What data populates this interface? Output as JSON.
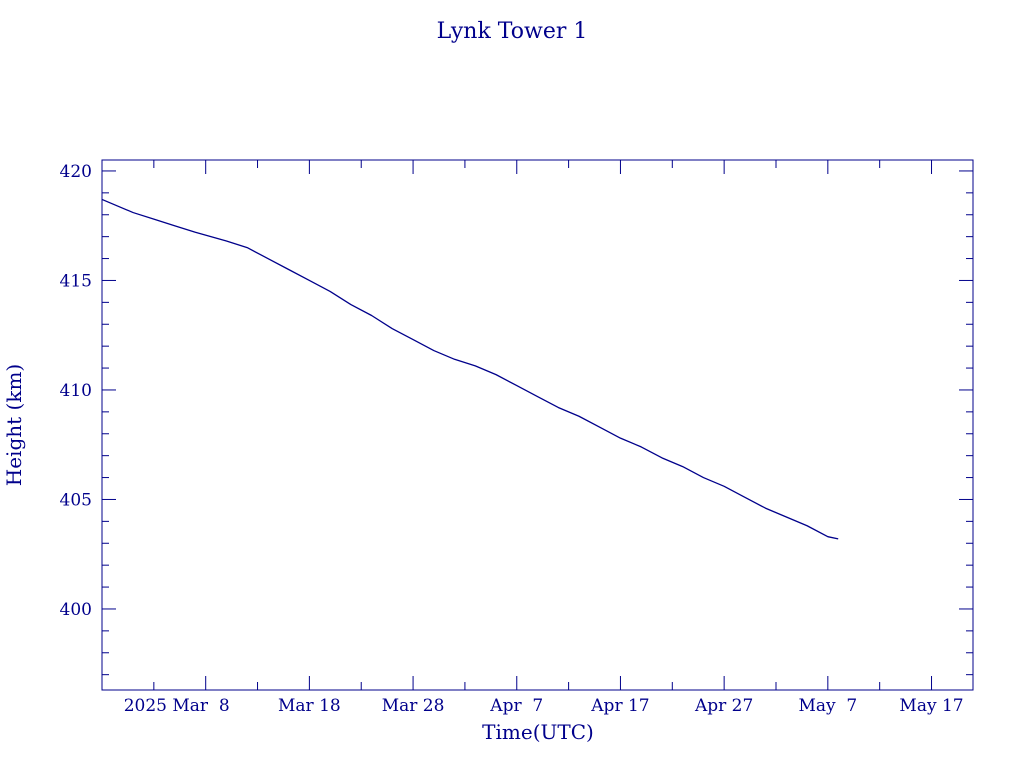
{
  "colors": {
    "ink": "#00008B",
    "background": "#ffffff"
  },
  "chart_data": {
    "type": "line",
    "title": "Lynk Tower 1",
    "xlabel": "Time(UTC)",
    "ylabel": "Height (km)",
    "x_scale": "date",
    "xlim": [
      "2025-02-26",
      "2025-05-21"
    ],
    "ylim": [
      396.3,
      420.5
    ],
    "x_ticks": [
      {
        "date": "2025-03-08",
        "label": "2025 Mar  8"
      },
      {
        "date": "2025-03-18",
        "label": "Mar 18"
      },
      {
        "date": "2025-03-28",
        "label": "Mar 28"
      },
      {
        "date": "2025-04-07",
        "label": "Apr  7"
      },
      {
        "date": "2025-04-17",
        "label": "Apr 17"
      },
      {
        "date": "2025-04-27",
        "label": "Apr 27"
      },
      {
        "date": "2025-05-07",
        "label": "May  7"
      },
      {
        "date": "2025-05-17",
        "label": "May 17"
      }
    ],
    "x_minor_tick_days": 5,
    "y_ticks": [
      400,
      405,
      410,
      415,
      420
    ],
    "y_minor_step": 1,
    "grid": false,
    "legend": "none",
    "series": [
      {
        "color": "#00008B",
        "points": [
          {
            "x": "2025-02-26",
            "y": 418.7
          },
          {
            "x": "2025-03-01",
            "y": 418.1
          },
          {
            "x": "2025-03-03",
            "y": 417.8
          },
          {
            "x": "2025-03-05",
            "y": 417.5
          },
          {
            "x": "2025-03-07",
            "y": 417.2
          },
          {
            "x": "2025-03-10",
            "y": 416.8
          },
          {
            "x": "2025-03-12",
            "y": 416.5
          },
          {
            "x": "2025-03-14",
            "y": 416.0
          },
          {
            "x": "2025-03-16",
            "y": 415.5
          },
          {
            "x": "2025-03-18",
            "y": 415.0
          },
          {
            "x": "2025-03-20",
            "y": 414.5
          },
          {
            "x": "2025-03-22",
            "y": 413.9
          },
          {
            "x": "2025-03-24",
            "y": 413.4
          },
          {
            "x": "2025-03-26",
            "y": 412.8
          },
          {
            "x": "2025-03-28",
            "y": 412.3
          },
          {
            "x": "2025-03-30",
            "y": 411.8
          },
          {
            "x": "2025-04-01",
            "y": 411.4
          },
          {
            "x": "2025-04-03",
            "y": 411.1
          },
          {
            "x": "2025-04-05",
            "y": 410.7
          },
          {
            "x": "2025-04-07",
            "y": 410.2
          },
          {
            "x": "2025-04-09",
            "y": 409.7
          },
          {
            "x": "2025-04-11",
            "y": 409.2
          },
          {
            "x": "2025-04-13",
            "y": 408.8
          },
          {
            "x": "2025-04-15",
            "y": 408.3
          },
          {
            "x": "2025-04-17",
            "y": 407.8
          },
          {
            "x": "2025-04-19",
            "y": 407.4
          },
          {
            "x": "2025-04-21",
            "y": 406.9
          },
          {
            "x": "2025-04-23",
            "y": 406.5
          },
          {
            "x": "2025-04-25",
            "y": 406.0
          },
          {
            "x": "2025-04-27",
            "y": 405.6
          },
          {
            "x": "2025-04-29",
            "y": 405.1
          },
          {
            "x": "2025-05-01",
            "y": 404.6
          },
          {
            "x": "2025-05-03",
            "y": 404.2
          },
          {
            "x": "2025-05-05",
            "y": 403.8
          },
          {
            "x": "2025-05-07",
            "y": 403.3
          },
          {
            "x": "2025-05-08",
            "y": 403.2
          }
        ]
      }
    ]
  }
}
